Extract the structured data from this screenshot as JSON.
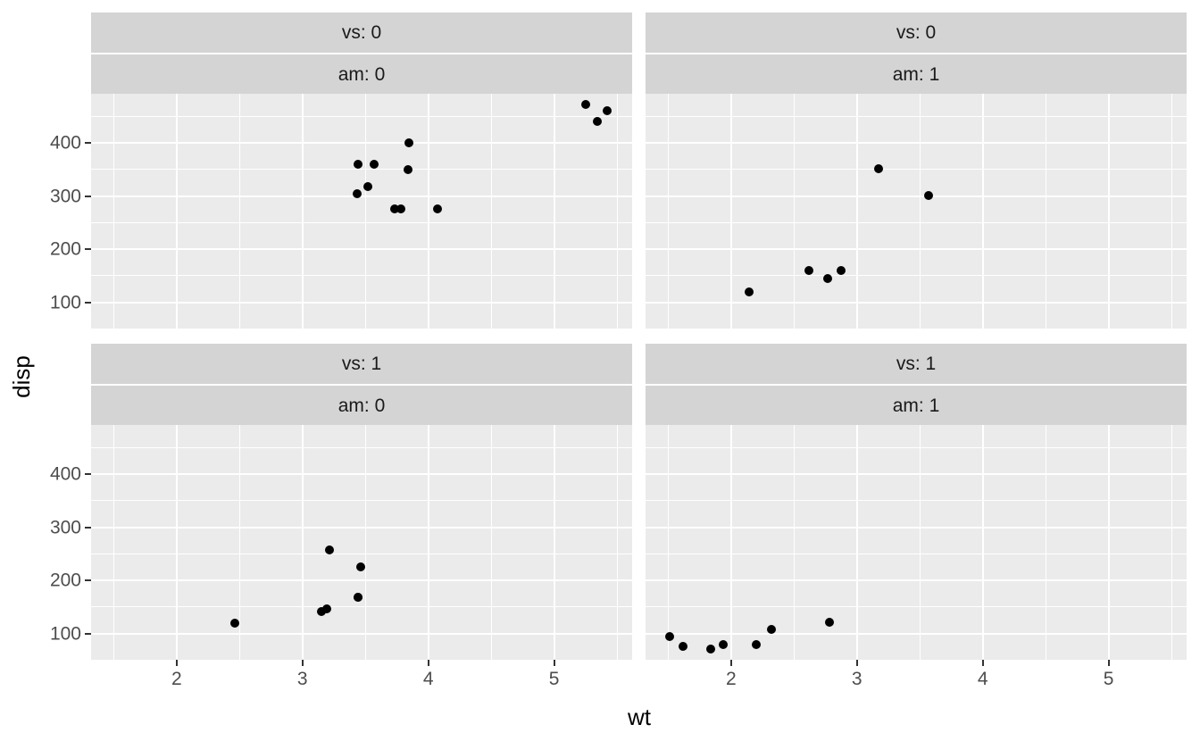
{
  "figure": {
    "background": "#FFFFFF"
  },
  "chart_data": {
    "type": "scatter",
    "title": "",
    "xlabel": "wt",
    "ylabel": "disp",
    "x_domain": [
      1.32,
      5.62
    ],
    "y_domain": [
      51,
      492
    ],
    "x_ticks": [
      2,
      3,
      4,
      5
    ],
    "y_ticks": [
      100,
      200,
      300,
      400
    ],
    "x_minor_ticks": [
      1.5,
      2.5,
      3.5,
      4.5,
      5.5
    ],
    "y_minor_ticks": [
      150,
      250,
      350,
      450
    ],
    "grid": true,
    "legend_position": "none",
    "point_color": "#000000",
    "panel_background": "#EBEBEB",
    "strip_background": "#D4D4D4",
    "tick_label_color": "#4D4D4D",
    "facets": [
      {
        "vs_label": "vs: 0",
        "am_label": "am: 0",
        "row": 0,
        "col": 0,
        "points": [
          [
            3.44,
            360
          ],
          [
            3.57,
            360
          ],
          [
            3.52,
            318
          ],
          [
            3.435,
            304
          ],
          [
            3.84,
            350
          ],
          [
            3.845,
            400
          ],
          [
            3.73,
            275.8
          ],
          [
            3.78,
            275.8
          ],
          [
            4.07,
            275.8
          ],
          [
            5.25,
            472
          ],
          [
            5.424,
            460
          ],
          [
            5.345,
            440
          ]
        ]
      },
      {
        "vs_label": "vs: 0",
        "am_label": "am: 1",
        "row": 0,
        "col": 1,
        "points": [
          [
            2.62,
            160
          ],
          [
            2.875,
            160
          ],
          [
            2.14,
            120.3
          ],
          [
            3.17,
            351
          ],
          [
            2.77,
            145
          ],
          [
            3.57,
            301
          ]
        ]
      },
      {
        "vs_label": "vs: 1",
        "am_label": "am: 0",
        "row": 1,
        "col": 0,
        "points": [
          [
            3.215,
            258
          ],
          [
            3.46,
            225
          ],
          [
            3.19,
            146.7
          ],
          [
            3.15,
            140.8
          ],
          [
            3.44,
            167.6
          ],
          [
            3.44,
            167.6
          ],
          [
            2.465,
            120.1
          ]
        ]
      },
      {
        "vs_label": "vs: 1",
        "am_label": "am: 1",
        "row": 1,
        "col": 1,
        "points": [
          [
            2.32,
            108
          ],
          [
            2.2,
            78.7
          ],
          [
            1.615,
            75.7
          ],
          [
            1.835,
            71.1
          ],
          [
            1.935,
            79
          ],
          [
            1.513,
            95.1
          ],
          [
            2.78,
            121
          ]
        ]
      }
    ]
  }
}
